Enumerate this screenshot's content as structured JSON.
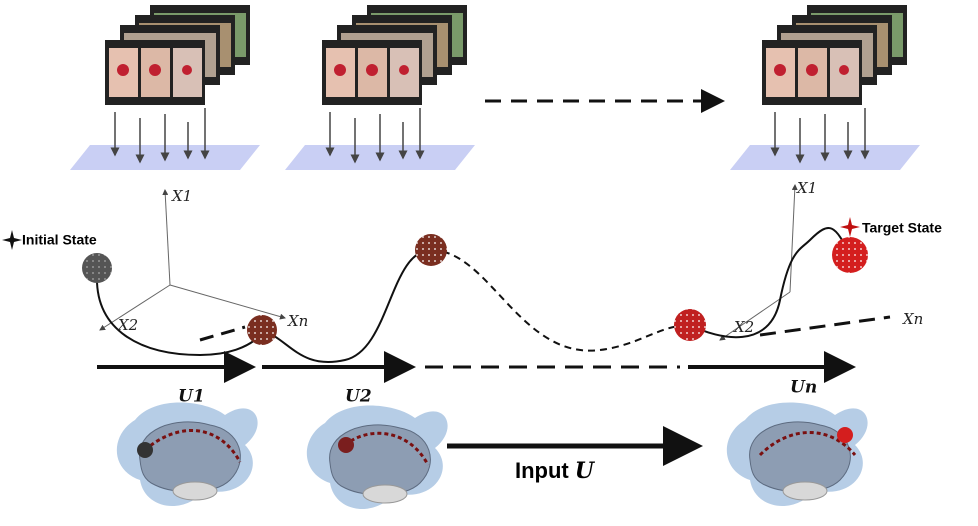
{
  "labels": {
    "initial_state": "Initial State",
    "target_state": "Target State"
  },
  "axes": [
    {
      "x1": "X1",
      "x2": "X2",
      "xn": "Xn"
    },
    {
      "x1": "X1",
      "x2": "X2",
      "xn": "Xn"
    }
  ],
  "controls": [
    "U1",
    "U2",
    "Un"
  ],
  "input": {
    "text": "Input",
    "symbol": "U"
  }
}
